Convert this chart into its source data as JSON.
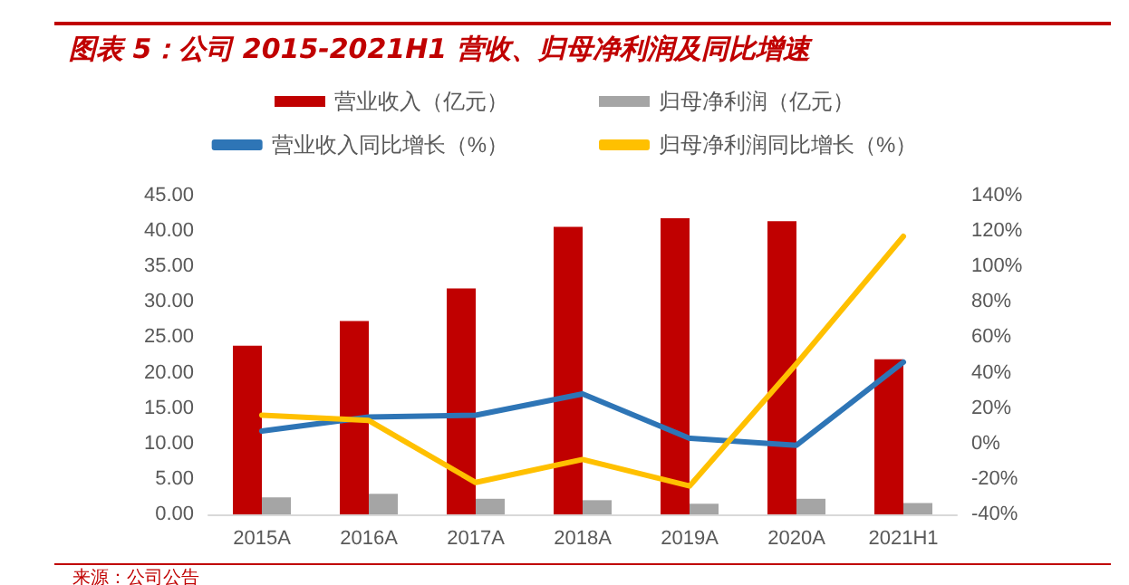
{
  "chart_data": {
    "type": "bar",
    "title": "图表 5：公司 2015-2021H1 营收、归母净利润及同比增速",
    "categories": [
      "2015A",
      "2016A",
      "2017A",
      "2018A",
      "2019A",
      "2020A",
      "2021H1"
    ],
    "series": [
      {
        "name": "营业收入（亿元）",
        "color": "#c00000",
        "values": [
          23.8,
          27.3,
          31.9,
          40.6,
          41.8,
          41.4,
          21.9
        ]
      },
      {
        "name": "归母净利润（亿元）",
        "color": "#a5a5a5",
        "values": [
          2.4,
          2.9,
          2.2,
          2.0,
          1.5,
          2.2,
          1.6
        ]
      },
      {
        "name": "营业收入同比增长（%）",
        "type": "line",
        "axis": "y2",
        "color": "#2e75b6",
        "values": [
          7,
          15,
          16,
          28,
          3,
          -1,
          46
        ]
      },
      {
        "name": "归母净利润同比增长（%）",
        "type": "line",
        "axis": "y2",
        "color": "#ffc000",
        "values": [
          16,
          13,
          -22,
          -9,
          -24,
          45,
          117
        ]
      }
    ],
    "ylim": [
      0,
      45
    ],
    "yticks": [
      {
        "value": 0,
        "label": "0.00"
      },
      {
        "value": 5,
        "label": "5.00"
      },
      {
        "value": 10,
        "label": "10.00"
      },
      {
        "value": 15,
        "label": "15.00"
      },
      {
        "value": 20,
        "label": "20.00"
      },
      {
        "value": 25,
        "label": "25.00"
      },
      {
        "value": 30,
        "label": "30.00"
      },
      {
        "value": 35,
        "label": "35.00"
      },
      {
        "value": 40,
        "label": "40.00"
      },
      {
        "value": 45,
        "label": "45.00"
      }
    ],
    "y2lim": [
      -40,
      140
    ],
    "y2ticks": [
      {
        "value": -40,
        "label": "-40%"
      },
      {
        "value": -20,
        "label": "-20%"
      },
      {
        "value": 0,
        "label": "0%"
      },
      {
        "value": 20,
        "label": "20%"
      },
      {
        "value": 40,
        "label": "40%"
      },
      {
        "value": 60,
        "label": "60%"
      },
      {
        "value": 80,
        "label": "80%"
      },
      {
        "value": 100,
        "label": "100%"
      },
      {
        "value": 120,
        "label": "120%"
      },
      {
        "value": 140,
        "label": "140%"
      }
    ],
    "grid": false,
    "legend": "top",
    "marker": "none",
    "line_style": "solid",
    "annotations": [
      "来源：公司公告"
    ]
  }
}
